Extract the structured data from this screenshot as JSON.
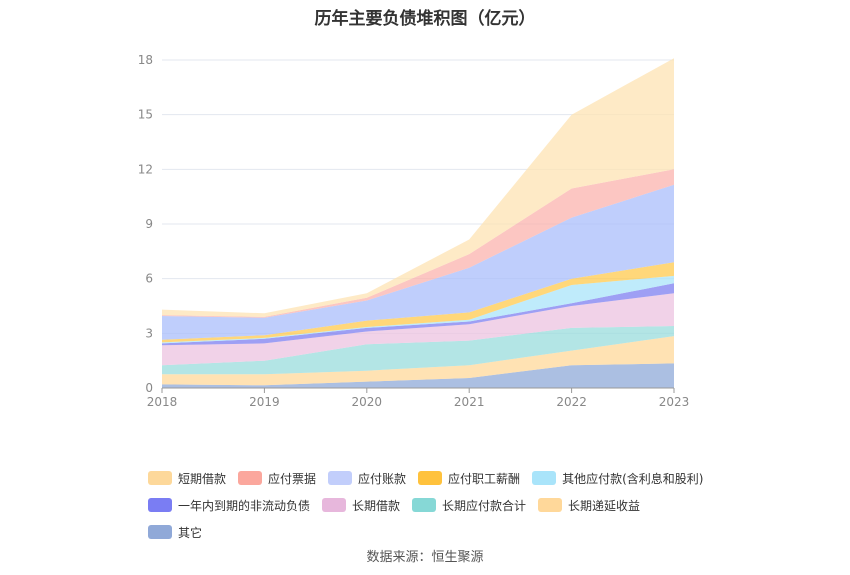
{
  "chart_data": {
    "type": "area",
    "stacked": true,
    "title": "历年主要负债堆积图（亿元）",
    "x": [
      "2018",
      "2019",
      "2020",
      "2021",
      "2022",
      "2023"
    ],
    "ylim": [
      0,
      18
    ],
    "yticks": [
      0,
      3,
      6,
      9,
      12,
      15,
      18
    ],
    "grid": true,
    "legend_position": "bottom",
    "series": [
      {
        "name": "其它",
        "color": "#8fa9d8",
        "values": [
          0.2,
          0.15,
          0.35,
          0.55,
          1.25,
          1.35
        ]
      },
      {
        "name": "长期递延收益",
        "color": "#ffd89a",
        "values": [
          0.55,
          0.6,
          0.6,
          0.7,
          0.8,
          1.5
        ]
      },
      {
        "name": "长期应付款合计",
        "color": "#9adcdc",
        "values": [
          0.5,
          0.75,
          1.45,
          1.35,
          1.25,
          0.55
        ]
      },
      {
        "name": "长期借款",
        "color": "#ecc3e0",
        "values": [
          1.1,
          0.95,
          0.7,
          0.9,
          1.2,
          1.8
        ]
      },
      {
        "name": "一年内到期的非流动负债",
        "color": "#7d7ff0",
        "values": [
          0.1,
          0.25,
          0.2,
          0.15,
          0.15,
          0.55
        ]
      },
      {
        "name": "其他应付款(含利息和股利)",
        "color": "#a9e4fa",
        "values": [
          0.05,
          0.05,
          0.05,
          0.1,
          1.0,
          0.4
        ]
      },
      {
        "name": "应付职工薪酬",
        "color": "#ffc94d",
        "values": [
          0.15,
          0.15,
          0.35,
          0.4,
          0.35,
          0.75
        ]
      },
      {
        "name": "应付账款",
        "color": "#aabdfb",
        "values": [
          1.3,
          0.95,
          1.1,
          2.45,
          3.35,
          4.25
        ]
      },
      {
        "name": "应付票据",
        "color": "#fbb3ad",
        "values": [
          0.05,
          0.05,
          0.15,
          0.75,
          1.6,
          0.85
        ]
      },
      {
        "name": "短期借款",
        "color": "#fde3b3",
        "values": [
          0.3,
          0.2,
          0.25,
          0.8,
          4.05,
          6.1
        ]
      }
    ],
    "legend_order": [
      "短期借款",
      "应付票据",
      "应付账款",
      "应付职工薪酬",
      "其他应付款(含利息和股利)",
      "一年内到期的非流动负债",
      "长期借款",
      "长期应付款合计",
      "长期递延收益",
      "其它"
    ],
    "legend_colors": {
      "短期借款": "#fdd89a",
      "应付票据": "#fba79d",
      "应付账款": "#c2cefb",
      "应付职工薪酬": "#ffc23d",
      "其他应付款(含利息和股利)": "#a9e4fa",
      "一年内到期的非流动负债": "#7a7df3",
      "长期借款": "#e7b7dc",
      "长期应付款合计": "#86d8d6",
      "长期递延收益": "#ffd89a",
      "其它": "#90a9d8"
    }
  },
  "source": "数据来源：恒生聚源"
}
